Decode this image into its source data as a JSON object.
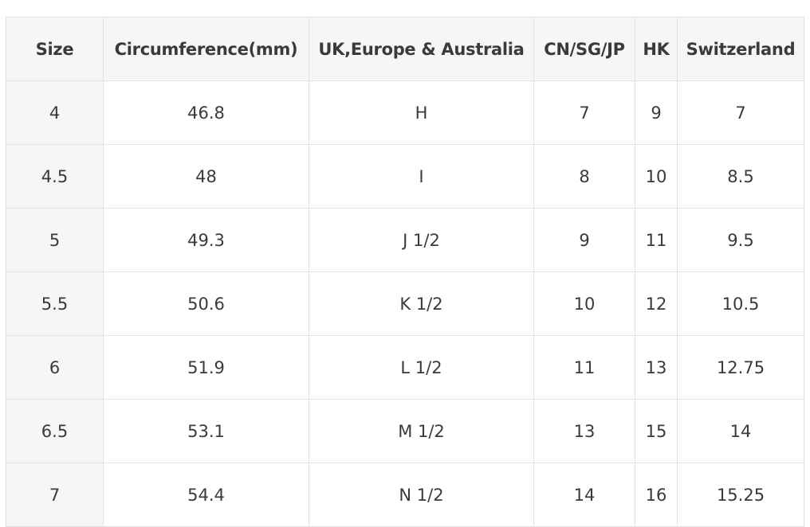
{
  "table": {
    "header": [
      "Size",
      "Circumference(mm)",
      "UK,Europe & Australia",
      "CN/SG/JP",
      "HK",
      "Switzerland"
    ],
    "rows": [
      [
        "4",
        "46.8",
        "H",
        "7",
        "9",
        "7"
      ],
      [
        "4.5",
        "48",
        "I",
        "8",
        "10",
        "8.5"
      ],
      [
        "5",
        "49.3",
        "J 1/2",
        "9",
        "11",
        "9.5"
      ],
      [
        "5.5",
        "50.6",
        "K 1/2",
        "10",
        "12",
        "10.5"
      ],
      [
        "6",
        "51.9",
        "L 1/2",
        "11",
        "13",
        "12.75"
      ],
      [
        "6.5",
        "53.1",
        "M 1/2",
        "13",
        "15",
        "14"
      ],
      [
        "7",
        "54.4",
        "N 1/2",
        "14",
        "16",
        "15.25"
      ]
    ]
  }
}
